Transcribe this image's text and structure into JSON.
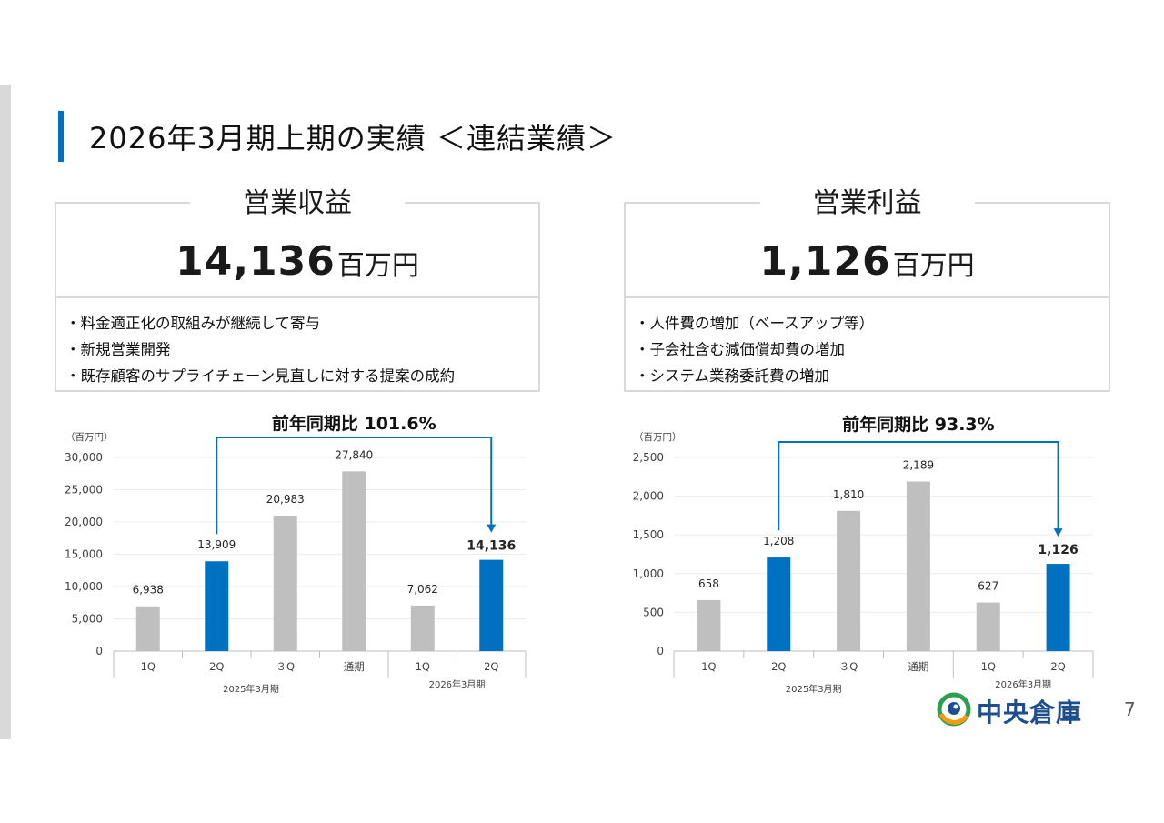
{
  "page": {
    "title": "2026年3月期上期の実績 ＜連結業績＞",
    "page_number": "7",
    "logo_text": "中央倉庫"
  },
  "kpis": [
    {
      "heading": "営業収益",
      "value": "14,136",
      "unit": "百万円",
      "bullets": [
        "・料金適正化の取組みが継続して寄与",
        "・新規営業開発",
        "・既存顧客のサプライチェーン見直しに対する提案の成約"
      ]
    },
    {
      "heading": "営業利益",
      "value": "1,126",
      "unit": "百万円",
      "bullets": [
        "・人件費の増加（ベースアップ等）",
        "・子会社含む減価償却費の増加",
        "・システム業務委託費の増加"
      ]
    }
  ],
  "chart_data": [
    {
      "type": "bar",
      "unit_label": "（百万円）",
      "categories": [
        "1Q",
        "2Q",
        "3Q",
        "通期",
        "1Q",
        "2Q"
      ],
      "display_labels": [
        "1Q",
        "2Q",
        "３Q",
        "通期",
        "1Q",
        "2Q"
      ],
      "groups": [
        {
          "label": "2025年3月期",
          "categories": [
            0,
            1,
            2,
            3
          ]
        },
        {
          "label": "2026年3月期",
          "categories": [
            4,
            5
          ]
        }
      ],
      "values": [
        6938,
        13909,
        20983,
        27840,
        7062,
        14136
      ],
      "value_labels": [
        "6,938",
        "13,909",
        "20,983",
        "27,840",
        "7,062",
        "14,136"
      ],
      "highlight": [
        false,
        true,
        false,
        false,
        false,
        true
      ],
      "emphasized_label": [
        false,
        false,
        false,
        false,
        false,
        true
      ],
      "yticks": [
        0,
        5000,
        10000,
        15000,
        20000,
        25000,
        30000
      ],
      "ytick_labels": [
        "0",
        "5,000",
        "10,000",
        "15,000",
        "20,000",
        "25,000",
        "30,000"
      ],
      "ylim": [
        0,
        30000
      ],
      "grid": true,
      "colors": {
        "highlight": "#0070c0",
        "default": "#bfbfbf",
        "arrow": "#0070c0"
      },
      "annotation": {
        "text": "前年同期比 101.6%",
        "from": 1,
        "to": 5
      }
    },
    {
      "type": "bar",
      "unit_label": "（百万円）",
      "categories": [
        "1Q",
        "2Q",
        "3Q",
        "通期",
        "1Q",
        "2Q"
      ],
      "display_labels": [
        "1Q",
        "2Q",
        "３Q",
        "通期",
        "1Q",
        "2Q"
      ],
      "groups": [
        {
          "label": "2025年3月期",
          "categories": [
            0,
            1,
            2,
            3
          ]
        },
        {
          "label": "2026年3月期",
          "categories": [
            4,
            5
          ]
        }
      ],
      "values": [
        658,
        1208,
        1810,
        2189,
        627,
        1126
      ],
      "value_labels": [
        "658",
        "1,208",
        "1,810",
        "2,189",
        "627",
        "1,126"
      ],
      "highlight": [
        false,
        true,
        false,
        false,
        false,
        true
      ],
      "emphasized_label": [
        false,
        false,
        false,
        false,
        false,
        true
      ],
      "yticks": [
        0,
        500,
        1000,
        1500,
        2000,
        2500
      ],
      "ytick_labels": [
        "0",
        "500",
        "1,000",
        "1,500",
        "2,000",
        "2,500"
      ],
      "ylim": [
        0,
        2500
      ],
      "grid": true,
      "colors": {
        "highlight": "#0070c0",
        "default": "#bfbfbf",
        "arrow": "#0070c0"
      },
      "annotation": {
        "text": "前年同期比 93.3%",
        "from": 1,
        "to": 5
      }
    }
  ]
}
